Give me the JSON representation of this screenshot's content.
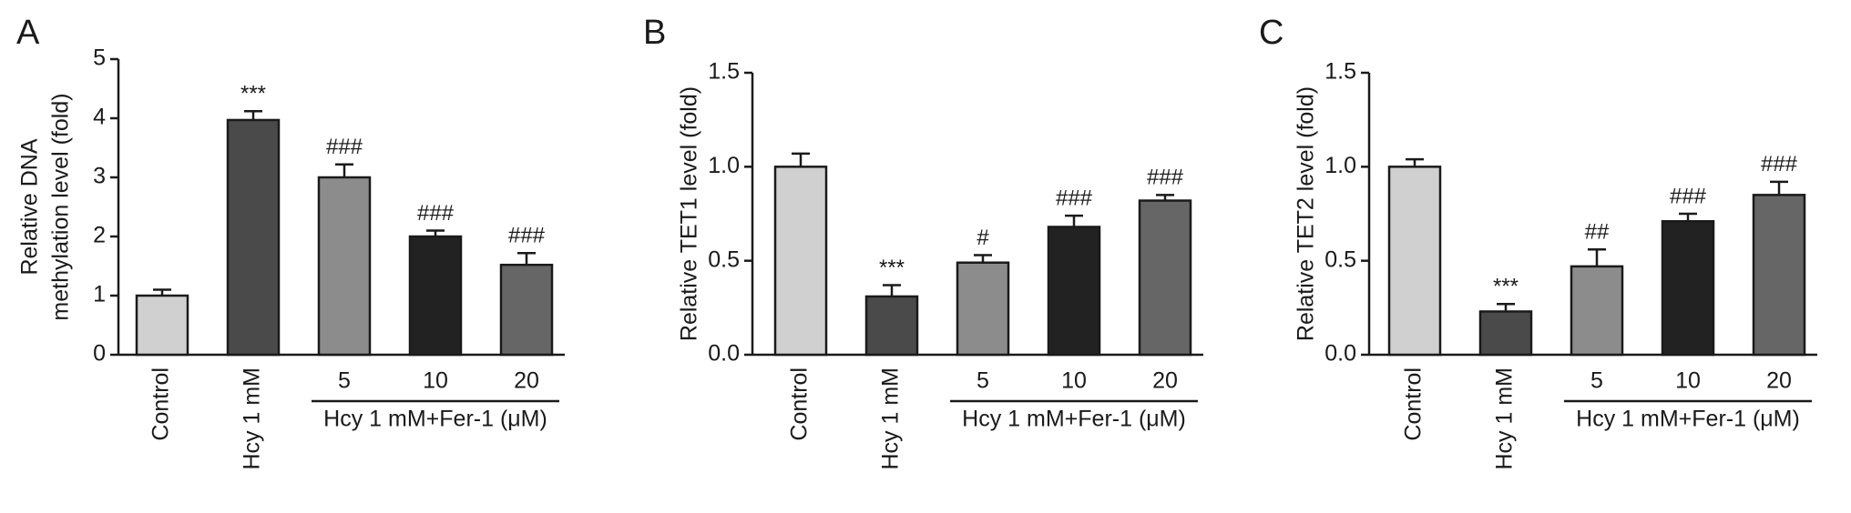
{
  "chart_data": [
    {
      "type": "bar",
      "panel_label": "A",
      "ylabel": [
        "Relative DNA",
        "methylation level (fold)"
      ],
      "categories": [
        "Control",
        "Hcy 1 mM",
        "5",
        "10",
        "20"
      ],
      "group_label": "Hcy 1 mM+Fer-1 (μM)",
      "values": [
        1.0,
        3.97,
        3.0,
        2.0,
        1.52
      ],
      "errors": [
        0.1,
        0.15,
        0.22,
        0.1,
        0.2
      ],
      "annotations": [
        null,
        "***",
        "###",
        "###",
        "###"
      ],
      "colors": [
        "#d0d0d0",
        "#4a4a4a",
        "#8c8c8c",
        "#222222",
        "#666666"
      ],
      "ylim": [
        0,
        5
      ],
      "yticks": [
        0,
        1,
        2,
        3,
        4,
        5
      ]
    },
    {
      "type": "bar",
      "panel_label": "B",
      "ylabel": [
        "Relative TET1 level (fold)"
      ],
      "categories": [
        "Control",
        "Hcy 1 mM",
        "5",
        "10",
        "20"
      ],
      "group_label": "Hcy 1 mM+Fer-1 (μM)",
      "values": [
        1.0,
        0.31,
        0.49,
        0.68,
        0.82
      ],
      "errors": [
        0.07,
        0.06,
        0.04,
        0.06,
        0.03
      ],
      "annotations": [
        null,
        "***",
        "#",
        "###",
        "###"
      ],
      "colors": [
        "#d0d0d0",
        "#4a4a4a",
        "#8c8c8c",
        "#222222",
        "#666666"
      ],
      "ylim": [
        0,
        1.5
      ],
      "yticks": [
        {
          "value": 0,
          "label": "0.0"
        },
        {
          "value": 0.5,
          "label": "0.5"
        },
        {
          "value": 1,
          "label": "1.0"
        },
        {
          "value": 1.5,
          "label": "1.5"
        }
      ]
    },
    {
      "type": "bar",
      "panel_label": "C",
      "ylabel": [
        "Relative TET2 level (fold)"
      ],
      "categories": [
        "Control",
        "Hcy 1 mM",
        "5",
        "10",
        "20"
      ],
      "group_label": "Hcy 1 mM+Fer-1 (μM)",
      "values": [
        1.0,
        0.23,
        0.47,
        0.71,
        0.85
      ],
      "errors": [
        0.04,
        0.04,
        0.09,
        0.04,
        0.07
      ],
      "annotations": [
        null,
        "***",
        "##",
        "###",
        "###"
      ],
      "colors": [
        "#d0d0d0",
        "#4a4a4a",
        "#8c8c8c",
        "#222222",
        "#666666"
      ],
      "ylim": [
        0,
        1.5
      ],
      "yticks": [
        {
          "value": 0,
          "label": "0.0"
        },
        {
          "value": 0.5,
          "label": "0.5"
        },
        {
          "value": 1,
          "label": "1.0"
        },
        {
          "value": 1.5,
          "label": "1.5"
        }
      ]
    }
  ]
}
